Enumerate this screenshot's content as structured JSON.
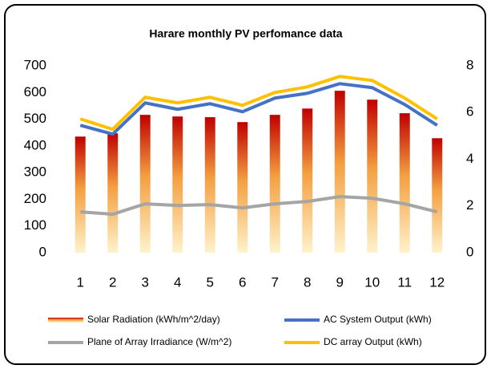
{
  "chart_data": {
    "type": "combo",
    "title": "Harare monthly PV perfomance data",
    "categories": [
      "1",
      "2",
      "3",
      "4",
      "5",
      "6",
      "7",
      "8",
      "9",
      "10",
      "11",
      "12"
    ],
    "series": [
      {
        "name": "Solar Radiation (kWh/m^2/day)",
        "type": "bar",
        "axis": "y2",
        "color": "#c00000",
        "values": [
          4.97,
          5.11,
          5.9,
          5.83,
          5.8,
          5.59,
          5.9,
          6.17,
          6.93,
          6.55,
          5.97,
          4.9
        ]
      },
      {
        "name": "AC System Output (kWh)",
        "type": "line",
        "color": "#4472c4",
        "values": [
          477,
          444,
          561,
          537,
          558,
          528,
          579,
          597,
          633,
          618,
          555,
          477
        ]
      },
      {
        "name": "Plane of Array Irradiance (W/m^2)",
        "type": "line",
        "color": "#a5a5a5",
        "values": [
          153,
          144,
          183,
          177,
          180,
          168,
          183,
          192,
          210,
          204,
          183,
          153
        ]
      },
      {
        "name": "DC array Output (kWh)",
        "type": "line",
        "color": "#ffc000",
        "values": [
          501,
          462,
          582,
          561,
          582,
          552,
          600,
          621,
          660,
          645,
          579,
          501
        ]
      }
    ],
    "ylim": [
      0,
      700
    ],
    "yticks": [
      0,
      100,
      200,
      300,
      400,
      500,
      600,
      700
    ],
    "y2lim": [
      0,
      8
    ],
    "y2ticks": [
      0,
      2,
      4,
      6,
      8
    ]
  }
}
